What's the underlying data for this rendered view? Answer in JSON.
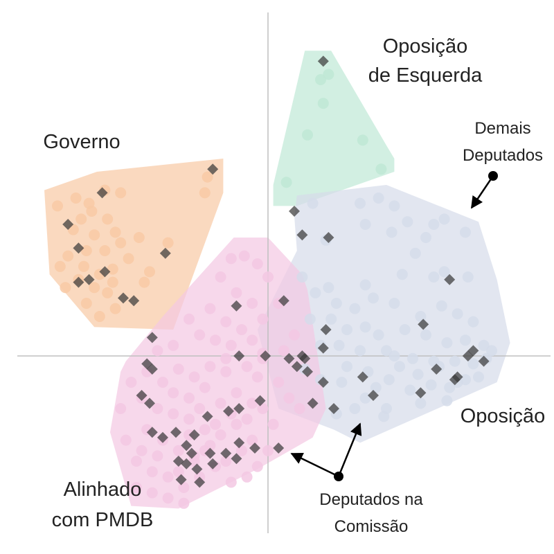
{
  "chart_data": {
    "type": "scatter",
    "title": "",
    "xlabel": "",
    "ylabel": "",
    "grid": false,
    "axes": "crosshair-at-origin",
    "xlim": [
      -100,
      100
    ],
    "ylim": [
      -100,
      100
    ],
    "groups": [
      {
        "label": "Governo",
        "color": "#f8c9a4",
        "hull": [
          [
            -85,
            63
          ],
          [
            -65,
            70
          ],
          [
            -17,
            75
          ],
          [
            -17,
            62
          ],
          [
            -36,
            10
          ],
          [
            -66,
            11
          ],
          [
            -83,
            31
          ]
        ],
        "points": [
          [
            -80,
            57
          ],
          [
            -73,
            60
          ],
          [
            -67,
            55
          ],
          [
            -61,
            52
          ],
          [
            -66,
            46
          ],
          [
            -74,
            48
          ],
          [
            -58,
            47
          ],
          [
            -69,
            40
          ],
          [
            -62,
            40
          ],
          [
            -56,
            43
          ],
          [
            -76,
            38
          ],
          [
            -70,
            34
          ],
          [
            -64,
            31
          ],
          [
            -59,
            33
          ],
          [
            -66,
            26
          ],
          [
            -61,
            24
          ],
          [
            -72,
            29
          ],
          [
            -79,
            34
          ],
          [
            -77,
            26
          ],
          [
            -69,
            20
          ],
          [
            -58,
            18
          ],
          [
            -64,
            15
          ],
          [
            -47,
            28
          ],
          [
            -53,
            37
          ],
          [
            -49,
            45
          ],
          [
            -38,
            43
          ],
          [
            -23,
            68
          ],
          [
            -24,
            62
          ],
          [
            -62,
            63
          ],
          [
            -68,
            58
          ],
          [
            -56,
            62
          ],
          [
            -71,
            52
          ],
          [
            -45,
            32
          ],
          [
            -59,
            28
          ]
        ],
        "committee": [
          [
            -63,
            62
          ],
          [
            -76,
            50
          ],
          [
            -72,
            41
          ],
          [
            -62,
            32
          ],
          [
            -68,
            29
          ],
          [
            -72,
            28
          ],
          [
            -55,
            22
          ],
          [
            -51,
            21
          ],
          [
            -39,
            39
          ],
          [
            -21,
            71
          ]
        ]
      },
      {
        "label": "Oposição de Esquerda",
        "color": "#bfe8d5",
        "hull": [
          [
            14,
            116
          ],
          [
            24,
            116
          ],
          [
            45,
            80
          ],
          [
            48,
            75
          ],
          [
            48,
            70
          ],
          [
            11,
            57
          ],
          [
            2,
            57
          ],
          [
            2,
            65
          ]
        ],
        "points": [
          [
            23,
            107
          ],
          [
            21,
            96
          ],
          [
            7,
            66
          ],
          [
            15,
            84
          ],
          [
            36,
            82
          ],
          [
            43,
            71
          ],
          [
            20,
            105
          ]
        ],
        "committee": [
          [
            21,
            112
          ]
        ]
      },
      {
        "label": "Demais Deputados",
        "color": "#d5dcea",
        "hull": [
          [
            11,
            61
          ],
          [
            45,
            65
          ],
          [
            80,
            51
          ],
          [
            87,
            29
          ],
          [
            92,
            5
          ],
          [
            87,
            -10
          ],
          [
            35,
            -33
          ],
          [
            25,
            -28
          ],
          [
            4,
            -20
          ],
          [
            -4,
            10
          ],
          [
            11,
            40
          ],
          [
            10,
            53
          ]
        ],
        "points": [
          [
            17,
            58
          ],
          [
            35,
            58
          ],
          [
            42,
            60
          ],
          [
            48,
            57
          ],
          [
            53,
            51
          ],
          [
            63,
            50
          ],
          [
            67,
            52
          ],
          [
            22,
            44
          ],
          [
            37,
            50
          ],
          [
            47,
            47
          ],
          [
            60,
            45
          ],
          [
            75,
            47
          ],
          [
            56,
            39
          ],
          [
            13,
            30
          ],
          [
            18,
            24
          ],
          [
            23,
            26
          ],
          [
            37,
            27
          ],
          [
            51,
            31
          ],
          [
            63,
            30
          ],
          [
            67,
            32
          ],
          [
            76,
            30
          ],
          [
            26,
            20
          ],
          [
            33,
            18
          ],
          [
            40,
            22
          ],
          [
            48,
            20
          ],
          [
            58,
            15
          ],
          [
            66,
            19
          ],
          [
            72,
            16
          ],
          [
            78,
            13
          ],
          [
            16,
            14
          ],
          [
            24,
            14
          ],
          [
            30,
            10
          ],
          [
            37,
            11
          ],
          [
            42,
            8
          ],
          [
            52,
            10
          ],
          [
            60,
            8
          ],
          [
            68,
            5
          ],
          [
            75,
            6
          ],
          [
            82,
            4
          ],
          [
            20,
            4
          ],
          [
            27,
            4
          ],
          [
            35,
            2
          ],
          [
            45,
            2
          ],
          [
            55,
            -1
          ],
          [
            63,
            -2
          ],
          [
            71,
            -2
          ],
          [
            78,
            -3
          ],
          [
            85,
            2
          ],
          [
            28,
            -10
          ],
          [
            38,
            -6
          ],
          [
            46,
            -9
          ],
          [
            54,
            -13
          ],
          [
            62,
            -11
          ],
          [
            72,
            -10
          ],
          [
            80,
            -8
          ],
          [
            33,
            -20
          ],
          [
            26,
            -22
          ],
          [
            44,
            -23
          ],
          [
            58,
            -18
          ],
          [
            68,
            -17
          ],
          [
            83,
            -1
          ],
          [
            48,
            0
          ],
          [
            14,
            -5
          ],
          [
            20,
            -9
          ],
          [
            30,
            -4
          ],
          [
            37,
            -16
          ],
          [
            65,
            -4
          ],
          [
            75,
            -9
          ],
          [
            41,
            -12
          ],
          [
            50,
            -4
          ],
          [
            57,
            -7
          ],
          [
            69,
            -12
          ],
          [
            45,
            -20
          ]
        ],
        "committee": [
          [
            10,
            55
          ],
          [
            13,
            46
          ],
          [
            23,
            45
          ],
          [
            69,
            29
          ],
          [
            22,
            10
          ],
          [
            59,
            12
          ],
          [
            21,
            3
          ],
          [
            13,
            0
          ],
          [
            11,
            -4
          ],
          [
            15,
            -6
          ],
          [
            21,
            -10
          ],
          [
            36,
            -8
          ],
          [
            40,
            -15
          ],
          [
            58,
            -14
          ],
          [
            64,
            -5
          ],
          [
            72,
            -8
          ],
          [
            82,
            -2
          ],
          [
            76,
            0
          ],
          [
            78,
            2
          ],
          [
            71,
            -9
          ],
          [
            25,
            -20
          ]
        ]
      },
      {
        "label": "Alinhado com PMDB",
        "color": "#f3c8e3",
        "hull": [
          [
            -13,
            45
          ],
          [
            0,
            45
          ],
          [
            13,
            31
          ],
          [
            15,
            25
          ],
          [
            22,
            -20
          ],
          [
            17,
            -31
          ],
          [
            -4,
            -43
          ],
          [
            -34,
            -58
          ],
          [
            -52,
            -57
          ],
          [
            -60,
            -29
          ],
          [
            -56,
            -6
          ],
          [
            -54,
            -2
          ],
          [
            -40,
            15
          ]
        ],
        "points": [
          [
            -14,
            37
          ],
          [
            -9,
            38
          ],
          [
            -4,
            35
          ],
          [
            0,
            30
          ],
          [
            -18,
            30
          ],
          [
            -12,
            24
          ],
          [
            -6,
            20
          ],
          [
            -2,
            14
          ],
          [
            -22,
            18
          ],
          [
            -16,
            13
          ],
          [
            -10,
            10
          ],
          [
            -30,
            14
          ],
          [
            -26,
            8
          ],
          [
            -20,
            6
          ],
          [
            -14,
            4
          ],
          [
            -6,
            6
          ],
          [
            -2,
            -1
          ],
          [
            -34,
            -5
          ],
          [
            -28,
            -8
          ],
          [
            -22,
            -4
          ],
          [
            -16,
            -1
          ],
          [
            -8,
            -4
          ],
          [
            -4,
            -8
          ],
          [
            -40,
            -10
          ],
          [
            -36,
            -14
          ],
          [
            -30,
            -16
          ],
          [
            -24,
            -12
          ],
          [
            -18,
            -18
          ],
          [
            -12,
            -14
          ],
          [
            -6,
            -18
          ],
          [
            -48,
            -16
          ],
          [
            -42,
            -20
          ],
          [
            -36,
            -22
          ],
          [
            -30,
            -24
          ],
          [
            -24,
            -28
          ],
          [
            -18,
            -30
          ],
          [
            -12,
            -26
          ],
          [
            -6,
            -32
          ],
          [
            -46,
            -28
          ],
          [
            -40,
            -32
          ],
          [
            -34,
            -36
          ],
          [
            -28,
            -38
          ],
          [
            -22,
            -34
          ],
          [
            -16,
            -40
          ],
          [
            -10,
            -36
          ],
          [
            -4,
            -42
          ],
          [
            -50,
            -40
          ],
          [
            -44,
            -44
          ],
          [
            -38,
            -46
          ],
          [
            -32,
            -50
          ],
          [
            -26,
            -46
          ],
          [
            -20,
            -42
          ],
          [
            -50,
            -50
          ],
          [
            -44,
            -52
          ],
          [
            -38,
            -54
          ],
          [
            -32,
            -56
          ],
          [
            -54,
            -32
          ],
          [
            -56,
            -20
          ],
          [
            -52,
            -10
          ],
          [
            -46,
            -6
          ],
          [
            4,
            -10
          ],
          [
            8,
            -16
          ],
          [
            12,
            -20
          ],
          [
            6,
            2
          ],
          [
            10,
            8
          ],
          [
            4,
            20
          ],
          [
            2,
            -26
          ],
          [
            -2,
            -20
          ],
          [
            -36,
            4
          ],
          [
            -42,
            2
          ],
          [
            -28,
            -40
          ],
          [
            -24,
            -36
          ],
          [
            -20,
            -26
          ],
          [
            -14,
            -22
          ],
          [
            -34,
            -44
          ],
          [
            -30,
            -30
          ],
          [
            0,
            -36
          ],
          [
            -8,
            -46
          ],
          [
            -14,
            -48
          ],
          [
            -42,
            -38
          ],
          [
            -8,
            -24
          ],
          [
            -48,
            -36
          ],
          [
            -26,
            -20
          ],
          [
            -16,
            -6
          ],
          [
            -2,
            1
          ]
        ],
        "committee": [
          [
            -44,
            7
          ],
          [
            -46,
            -3
          ],
          [
            -44,
            -5
          ],
          [
            -48,
            -15
          ],
          [
            -45,
            -18
          ],
          [
            -44,
            -29
          ],
          [
            -40,
            -31
          ],
          [
            -35,
            -29
          ],
          [
            -31,
            -34
          ],
          [
            -29,
            -37
          ],
          [
            -31,
            -41
          ],
          [
            -27,
            -43
          ],
          [
            -22,
            -37
          ],
          [
            -16,
            -37
          ],
          [
            -12,
            -39
          ],
          [
            -11,
            -33
          ],
          [
            -5,
            -35
          ],
          [
            -3,
            -17
          ],
          [
            -11,
            -20
          ],
          [
            -15,
            -21
          ],
          [
            -23,
            -23
          ],
          [
            -28,
            -30
          ],
          [
            -34,
            -40
          ],
          [
            -26,
            -48
          ],
          [
            -21,
            -41
          ],
          [
            -33,
            -47
          ],
          [
            -11,
            0
          ],
          [
            -12,
            19
          ],
          [
            6,
            21
          ],
          [
            -1,
            0
          ],
          [
            8,
            -1
          ],
          [
            14,
            -1
          ],
          [
            4,
            -35
          ],
          [
            17,
            -18
          ]
        ]
      }
    ],
    "labels": {
      "governo": "Governo",
      "oposicao_esquerda_1": "Oposição",
      "oposicao_esquerda_2": "de Esquerda",
      "demais_1": "Demais",
      "demais_2": "Deputados",
      "oposicao": "Oposição",
      "alinhado_1": "Alinhado",
      "alinhado_2": "com PMDB",
      "comissao_1": "Deputados na",
      "comissao_2": "Comissão"
    },
    "legend": "none",
    "marker_colors": {
      "member": "semi-transparent circle in group color",
      "committee": "#3a3a3a diamond"
    }
  }
}
